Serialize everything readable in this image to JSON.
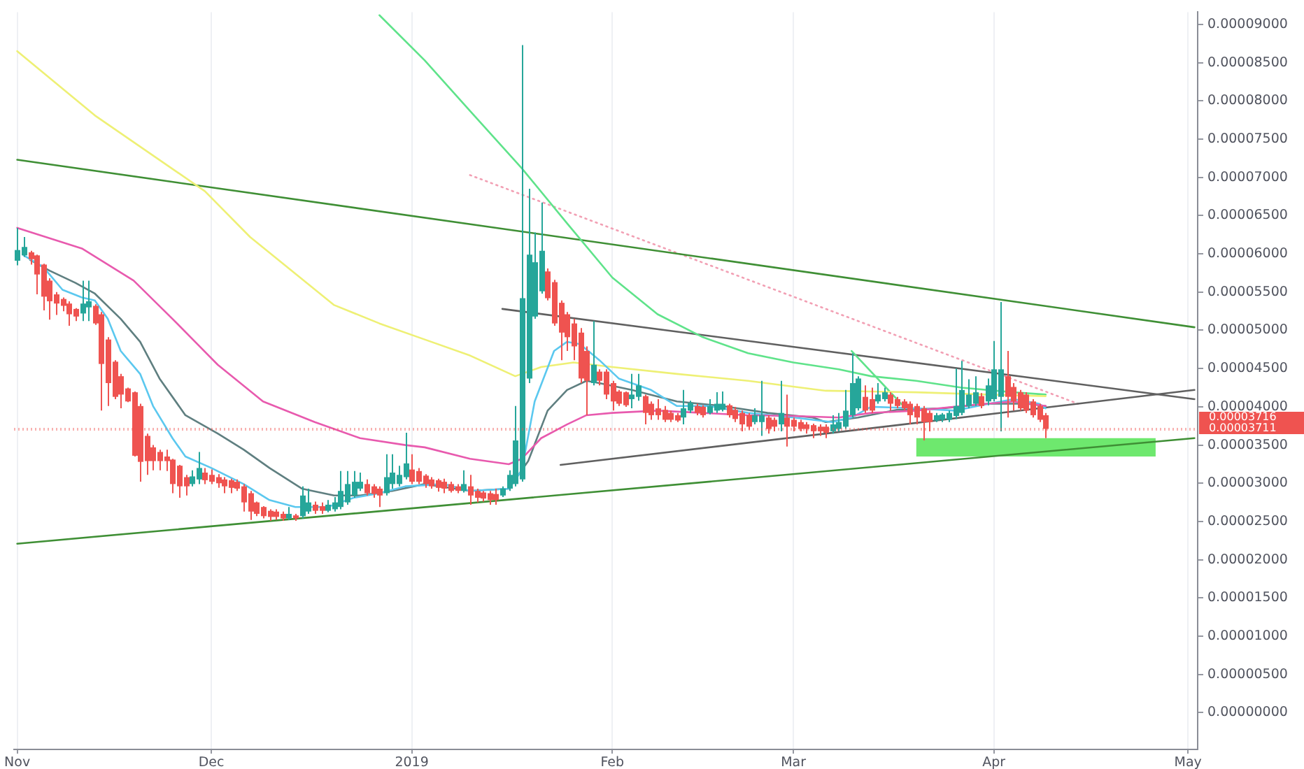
{
  "chart_data": {
    "type": "candlestick",
    "x": [
      "2018-11-01",
      "2018-11-02",
      "2018-11-03",
      "2018-11-04",
      "2018-11-05",
      "2018-11-06",
      "2018-11-07",
      "2018-11-08",
      "2018-11-09",
      "2018-11-10",
      "2018-11-11",
      "2018-11-12",
      "2018-11-13",
      "2018-11-14",
      "2018-11-15",
      "2018-11-16",
      "2018-11-17",
      "2018-11-18",
      "2018-11-19",
      "2018-11-20",
      "2018-11-21",
      "2018-11-22",
      "2018-11-23",
      "2018-11-24",
      "2018-11-25",
      "2018-11-26",
      "2018-11-27",
      "2018-11-28",
      "2018-11-29",
      "2018-11-30",
      "2018-12-01",
      "2018-12-02",
      "2018-12-03",
      "2018-12-04",
      "2018-12-05",
      "2018-12-06",
      "2018-12-07",
      "2018-12-08",
      "2018-12-09",
      "2018-12-10",
      "2018-12-11",
      "2018-12-12",
      "2018-12-13",
      "2018-12-14",
      "2018-12-15",
      "2018-12-16",
      "2018-12-17",
      "2018-12-18",
      "2018-12-19",
      "2018-12-20",
      "2018-12-21",
      "2018-12-22",
      "2018-12-23",
      "2018-12-24",
      "2018-12-25",
      "2018-12-26",
      "2018-12-27",
      "2018-12-28",
      "2018-12-29",
      "2018-12-30",
      "2018-12-31",
      "2019-01-01",
      "2019-01-02",
      "2019-01-03",
      "2019-01-04",
      "2019-01-05",
      "2019-01-06",
      "2019-01-07",
      "2019-01-08",
      "2019-01-09",
      "2019-01-10",
      "2019-01-11",
      "2019-01-12",
      "2019-01-13",
      "2019-01-14",
      "2019-01-15",
      "2019-01-16",
      "2019-01-17",
      "2019-01-18",
      "2019-01-19",
      "2019-01-20",
      "2019-01-21",
      "2019-01-22",
      "2019-01-23",
      "2019-01-24",
      "2019-01-25",
      "2019-01-26",
      "2019-01-27",
      "2019-01-28",
      "2019-01-29",
      "2019-01-30",
      "2019-01-31",
      "2019-02-01",
      "2019-02-02",
      "2019-02-03",
      "2019-02-04",
      "2019-02-05",
      "2019-02-06",
      "2019-02-07",
      "2019-02-08",
      "2019-02-09",
      "2019-02-10",
      "2019-02-11",
      "2019-02-12",
      "2019-02-13",
      "2019-02-14",
      "2019-02-15",
      "2019-02-16",
      "2019-02-17",
      "2019-02-18",
      "2019-02-19",
      "2019-02-20",
      "2019-02-21",
      "2019-02-22",
      "2019-02-23",
      "2019-02-24",
      "2019-02-25",
      "2019-02-26",
      "2019-02-27",
      "2019-02-28",
      "2019-03-01",
      "2019-03-02",
      "2019-03-03",
      "2019-03-04",
      "2019-03-05",
      "2019-03-06",
      "2019-03-07",
      "2019-03-08",
      "2019-03-09",
      "2019-03-10",
      "2019-03-11",
      "2019-03-12",
      "2019-03-13",
      "2019-03-14",
      "2019-03-15",
      "2019-03-16",
      "2019-03-17",
      "2019-03-18",
      "2019-03-19",
      "2019-03-20",
      "2019-03-21",
      "2019-03-22",
      "2019-03-23",
      "2019-03-24",
      "2019-03-25",
      "2019-03-26",
      "2019-03-27",
      "2019-03-28",
      "2019-03-29",
      "2019-03-30",
      "2019-03-31",
      "2019-04-01",
      "2019-04-02",
      "2019-04-03",
      "2019-04-04",
      "2019-04-05",
      "2019-04-06",
      "2019-04-07",
      "2019-04-08",
      "2019-04-09"
    ],
    "ohlc": [
      [
        5.91e-05,
        6.34e-05,
        5.85e-05,
        6.05e-05
      ],
      [
        5.98e-05,
        6.22e-05,
        5.96e-05,
        6.09e-05
      ],
      [
        6.02e-05,
        6.04e-05,
        5.86e-05,
        5.93e-05
      ],
      [
        5.98e-05,
        5.99e-05,
        5.47e-05,
        5.73e-05
      ],
      [
        5.86e-05,
        5.87e-05,
        5.26e-05,
        5.44e-05
      ],
      [
        5.65e-05,
        5.68e-05,
        5.14e-05,
        5.38e-05
      ],
      [
        5.47e-05,
        5.5e-05,
        5.2e-05,
        5.35e-05
      ],
      [
        5.41e-05,
        5.43e-05,
        5.25e-05,
        5.32e-05
      ],
      [
        5.35e-05,
        5.38e-05,
        5.06e-05,
        5.21e-05
      ],
      [
        5.28e-05,
        5.29e-05,
        5.12e-05,
        5.18e-05
      ],
      [
        5.22e-05,
        5.65e-05,
        5.12e-05,
        5.35e-05
      ],
      [
        5.3e-05,
        5.65e-05,
        5.12e-05,
        5.38e-05
      ],
      [
        5.32e-05,
        5.34e-05,
        5.07e-05,
        5.09e-05
      ],
      [
        5.21e-05,
        5.24e-05,
        3.95e-05,
        4.56e-05
      ],
      [
        4.88e-05,
        4.91e-05,
        4.01e-05,
        4.31e-05
      ],
      [
        4.59e-05,
        4.61e-05,
        4.1e-05,
        4.13e-05
      ],
      [
        4.4e-05,
        4.43e-05,
        3.98e-05,
        4.16e-05
      ],
      [
        4.24e-05,
        4.25e-05,
        4.06e-05,
        4.07e-05
      ],
      [
        4.19e-05,
        4.2e-05,
        3.35e-05,
        3.36e-05
      ],
      [
        4.01e-05,
        4.04e-05,
        3.02e-05,
        3.28e-05
      ],
      [
        3.62e-05,
        3.65e-05,
        3.11e-05,
        3.29e-05
      ],
      [
        3.47e-05,
        3.5e-05,
        3.17e-05,
        3.29e-05
      ],
      [
        3.41e-05,
        3.44e-05,
        3.17e-05,
        3.29e-05
      ],
      [
        3.35e-05,
        3.44e-05,
        3.16e-05,
        3.29e-05
      ],
      [
        3.31e-05,
        3.32e-05,
        2.87e-05,
        2.99e-05
      ],
      [
        3.23e-05,
        3.24e-05,
        2.81e-05,
        2.96e-05
      ],
      [
        3.08e-05,
        3.11e-05,
        2.84e-05,
        2.96e-05
      ],
      [
        2.99e-05,
        3.17e-05,
        2.96e-05,
        3.09e-05
      ],
      [
        3.05e-05,
        3.41e-05,
        2.99e-05,
        3.2e-05
      ],
      [
        3.14e-05,
        3.2e-05,
        2.99e-05,
        3.04e-05
      ],
      [
        3.11e-05,
        3.18e-05,
        2.99e-05,
        3.02e-05
      ],
      [
        3.08e-05,
        3.12e-05,
        2.94e-05,
        3e-05
      ],
      [
        3.05e-05,
        3.08e-05,
        2.87e-05,
        2.96e-05
      ],
      [
        3.04e-05,
        3.06e-05,
        2.87e-05,
        2.94e-05
      ],
      [
        3.02e-05,
        3.05e-05,
        2.9e-05,
        2.93e-05
      ],
      [
        2.96e-05,
        2.99e-05,
        2.63e-05,
        2.75e-05
      ],
      [
        2.87e-05,
        2.9e-05,
        2.52e-05,
        2.63e-05
      ],
      [
        2.75e-05,
        2.76e-05,
        2.57e-05,
        2.6e-05
      ],
      [
        2.69e-05,
        2.7e-05,
        2.54e-05,
        2.57e-05
      ],
      [
        2.64e-05,
        2.66e-05,
        2.51e-05,
        2.56e-05
      ],
      [
        2.63e-05,
        2.66e-05,
        2.52e-05,
        2.56e-05
      ],
      [
        2.6e-05,
        2.63e-05,
        2.51e-05,
        2.54e-05
      ],
      [
        2.54e-05,
        2.69e-05,
        2.52e-05,
        2.6e-05
      ],
      [
        2.58e-05,
        2.6e-05,
        2.51e-05,
        2.54e-05
      ],
      [
        2.57e-05,
        2.96e-05,
        2.54e-05,
        2.84e-05
      ],
      [
        2.63e-05,
        2.93e-05,
        2.6e-05,
        2.75e-05
      ],
      [
        2.72e-05,
        2.76e-05,
        2.6e-05,
        2.64e-05
      ],
      [
        2.7e-05,
        2.75e-05,
        2.6e-05,
        2.64e-05
      ],
      [
        2.64e-05,
        2.78e-05,
        2.62e-05,
        2.72e-05
      ],
      [
        2.66e-05,
        2.82e-05,
        2.63e-05,
        2.75e-05
      ],
      [
        2.69e-05,
        3.16e-05,
        2.66e-05,
        2.9e-05
      ],
      [
        2.75e-05,
        3.16e-05,
        2.72e-05,
        2.99e-05
      ],
      [
        2.84e-05,
        3.16e-05,
        2.81e-05,
        3.02e-05
      ],
      [
        2.93e-05,
        3.14e-05,
        2.9e-05,
        3.02e-05
      ],
      [
        2.99e-05,
        3.05e-05,
        2.84e-05,
        2.87e-05
      ],
      [
        2.96e-05,
        2.99e-05,
        2.81e-05,
        2.86e-05
      ],
      [
        2.93e-05,
        2.96e-05,
        2.69e-05,
        2.84e-05
      ],
      [
        2.87e-05,
        3.38e-05,
        2.84e-05,
        3.08e-05
      ],
      [
        2.99e-05,
        3.38e-05,
        2.93e-05,
        3.14e-05
      ],
      [
        2.99e-05,
        3.23e-05,
        2.96e-05,
        3.11e-05
      ],
      [
        3.08e-05,
        3.66e-05,
        3.05e-05,
        3.26e-05
      ],
      [
        3.18e-05,
        3.38e-05,
        2.99e-05,
        3.02e-05
      ],
      [
        3.16e-05,
        3.2e-05,
        2.99e-05,
        3.02e-05
      ],
      [
        3.1e-05,
        3.12e-05,
        2.94e-05,
        2.99e-05
      ],
      [
        3.05e-05,
        3.08e-05,
        2.93e-05,
        2.96e-05
      ],
      [
        3.04e-05,
        3.06e-05,
        2.89e-05,
        2.94e-05
      ],
      [
        3.02e-05,
        3.06e-05,
        2.87e-05,
        2.93e-05
      ],
      [
        2.99e-05,
        3.02e-05,
        2.88e-05,
        2.9e-05
      ],
      [
        2.96e-05,
        2.99e-05,
        2.87e-05,
        2.9e-05
      ],
      [
        2.9e-05,
        3.17e-05,
        2.88e-05,
        2.99e-05
      ],
      [
        2.96e-05,
        3.11e-05,
        2.72e-05,
        2.84e-05
      ],
      [
        2.9e-05,
        2.93e-05,
        2.75e-05,
        2.81e-05
      ],
      [
        2.88e-05,
        2.9e-05,
        2.76e-05,
        2.8e-05
      ],
      [
        2.87e-05,
        2.9e-05,
        2.72e-05,
        2.78e-05
      ],
      [
        2.86e-05,
        2.93e-05,
        2.72e-05,
        2.78e-05
      ],
      [
        2.84e-05,
        2.96e-05,
        2.82e-05,
        2.93e-05
      ],
      [
        2.93e-05,
        3.17e-05,
        2.9e-05,
        3.11e-05
      ],
      [
        2.99e-05,
        4.01e-05,
        2.96e-05,
        3.56e-05
      ],
      [
        3.05e-05,
        8.73e-05,
        3.02e-05,
        5.42e-05
      ],
      [
        4.37e-05,
        6.85e-05,
        4.31e-05,
        5.99e-05
      ],
      [
        5.18e-05,
        6.28e-05,
        5.15e-05,
        5.89e-05
      ],
      [
        5.51e-05,
        6.67e-05,
        5.48e-05,
        6.04e-05
      ],
      [
        5.77e-05,
        5.81e-05,
        5.39e-05,
        5.42e-05
      ],
      [
        5.63e-05,
        5.66e-05,
        5.06e-05,
        5.09e-05
      ],
      [
        5.36e-05,
        5.39e-05,
        4.61e-05,
        4.97e-05
      ],
      [
        5.21e-05,
        5.24e-05,
        4.73e-05,
        4.91e-05
      ],
      [
        5.09e-05,
        5.15e-05,
        4.61e-05,
        4.79e-05
      ],
      [
        4.97e-05,
        5.03e-05,
        4.31e-05,
        4.37e-05
      ],
      [
        4.73e-05,
        4.79e-05,
        3.89e-05,
        4.34e-05
      ],
      [
        4.31e-05,
        5.12e-05,
        4.28e-05,
        4.55e-05
      ],
      [
        4.46e-05,
        4.49e-05,
        4.28e-05,
        4.34e-05
      ],
      [
        4.46e-05,
        4.49e-05,
        4.1e-05,
        4.16e-05
      ],
      [
        4.31e-05,
        4.34e-05,
        3.95e-05,
        4.07e-05
      ],
      [
        4.2e-05,
        4.22e-05,
        4.01e-05,
        4.04e-05
      ],
      [
        4.19e-05,
        4.2e-05,
        4e-05,
        4.02e-05
      ],
      [
        4.1e-05,
        4.43e-05,
        3.98e-05,
        4.16e-05
      ],
      [
        4.13e-05,
        4.43e-05,
        4.08e-05,
        4.28e-05
      ],
      [
        4.14e-05,
        4.16e-05,
        3.77e-05,
        3.92e-05
      ],
      [
        4.04e-05,
        4.07e-05,
        3.83e-05,
        3.89e-05
      ],
      [
        3.98e-05,
        4.1e-05,
        3.83e-05,
        3.89e-05
      ],
      [
        3.96e-05,
        4.01e-05,
        3.8e-05,
        3.83e-05
      ],
      [
        3.92e-05,
        3.95e-05,
        3.8e-05,
        3.83e-05
      ],
      [
        3.89e-05,
        3.92e-05,
        3.8e-05,
        3.82e-05
      ],
      [
        3.86e-05,
        4.22e-05,
        3.77e-05,
        3.98e-05
      ],
      [
        3.95e-05,
        4.08e-05,
        3.92e-05,
        4.05e-05
      ],
      [
        4.01e-05,
        4.04e-05,
        3.89e-05,
        3.92e-05
      ],
      [
        4e-05,
        4.02e-05,
        3.86e-05,
        3.89e-05
      ],
      [
        3.92e-05,
        4.1e-05,
        3.9e-05,
        4.01e-05
      ],
      [
        3.95e-05,
        4.19e-05,
        3.92e-05,
        4.04e-05
      ],
      [
        3.96e-05,
        4.2e-05,
        3.94e-05,
        4.04e-05
      ],
      [
        4.02e-05,
        4.04e-05,
        3.86e-05,
        3.89e-05
      ],
      [
        3.96e-05,
        4e-05,
        3.8e-05,
        3.84e-05
      ],
      [
        3.92e-05,
        3.95e-05,
        3.68e-05,
        3.77e-05
      ],
      [
        3.89e-05,
        3.92e-05,
        3.7e-05,
        3.74e-05
      ],
      [
        3.8e-05,
        3.98e-05,
        3.77e-05,
        3.89e-05
      ],
      [
        3.8e-05,
        4.34e-05,
        3.62e-05,
        3.89e-05
      ],
      [
        3.86e-05,
        3.89e-05,
        3.65e-05,
        3.71e-05
      ],
      [
        3.83e-05,
        3.86e-05,
        3.68e-05,
        3.74e-05
      ],
      [
        3.77e-05,
        4.34e-05,
        3.68e-05,
        3.92e-05
      ],
      [
        3.86e-05,
        4.16e-05,
        3.48e-05,
        3.74e-05
      ],
      [
        3.83e-05,
        3.86e-05,
        3.68e-05,
        3.74e-05
      ],
      [
        3.8e-05,
        3.83e-05,
        3.68e-05,
        3.71e-05
      ],
      [
        3.77e-05,
        3.8e-05,
        3.65e-05,
        3.71e-05
      ],
      [
        3.76e-05,
        3.78e-05,
        3.59e-05,
        3.68e-05
      ],
      [
        3.74e-05,
        3.77e-05,
        3.62e-05,
        3.68e-05
      ],
      [
        3.74e-05,
        3.77e-05,
        3.59e-05,
        3.66e-05
      ],
      [
        3.68e-05,
        3.89e-05,
        3.65e-05,
        3.77e-05
      ],
      [
        3.71e-05,
        3.92e-05,
        3.68e-05,
        3.8e-05
      ],
      [
        3.74e-05,
        4.22e-05,
        3.71e-05,
        3.95e-05
      ],
      [
        3.89e-05,
        4.7e-05,
        3.86e-05,
        4.31e-05
      ],
      [
        3.98e-05,
        4.4e-05,
        3.95e-05,
        4.37e-05
      ],
      [
        4.13e-05,
        4.28e-05,
        3.92e-05,
        3.95e-05
      ],
      [
        4.1e-05,
        4.25e-05,
        3.92e-05,
        3.95e-05
      ],
      [
        4.07e-05,
        4.31e-05,
        4.04e-05,
        4.16e-05
      ],
      [
        4.1e-05,
        4.25e-05,
        4.07e-05,
        4.19e-05
      ],
      [
        4.16e-05,
        4.19e-05,
        3.95e-05,
        4.04e-05
      ],
      [
        4.1e-05,
        4.13e-05,
        3.98e-05,
        4.01e-05
      ],
      [
        4.07e-05,
        4.1e-05,
        3.95e-05,
        3.98e-05
      ],
      [
        4.04e-05,
        4.07e-05,
        3.77e-05,
        3.89e-05
      ],
      [
        4.01e-05,
        4.04e-05,
        3.77e-05,
        3.86e-05
      ],
      [
        3.98e-05,
        4.01e-05,
        3.56e-05,
        3.8e-05
      ],
      [
        3.92e-05,
        3.95e-05,
        3.68e-05,
        3.8e-05
      ],
      [
        3.82e-05,
        3.92e-05,
        3.8e-05,
        3.89e-05
      ],
      [
        3.83e-05,
        3.92e-05,
        3.8e-05,
        3.9e-05
      ],
      [
        3.83e-05,
        3.95e-05,
        3.8e-05,
        3.92e-05
      ],
      [
        3.88e-05,
        4.5e-05,
        3.84e-05,
        4.01e-05
      ],
      [
        3.92e-05,
        4.6e-05,
        3.89e-05,
        4.22e-05
      ],
      [
        4.01e-05,
        4.36e-05,
        3.98e-05,
        4.16e-05
      ],
      [
        4.04e-05,
        4.4e-05,
        4.01e-05,
        4.19e-05
      ],
      [
        4.14e-05,
        4.18e-05,
        3.98e-05,
        4.01e-05
      ],
      [
        4.07e-05,
        4.37e-05,
        4.02e-05,
        4.28e-05
      ],
      [
        4.1e-05,
        4.86e-05,
        4.07e-05,
        4.49e-05
      ],
      [
        4.13e-05,
        5.37e-05,
        3.68e-05,
        4.49e-05
      ],
      [
        4.4e-05,
        4.73e-05,
        3.86e-05,
        4.13e-05
      ],
      [
        4.26e-05,
        4.31e-05,
        3.95e-05,
        4.07e-05
      ],
      [
        4.19e-05,
        4.22e-05,
        3.95e-05,
        3.98e-05
      ],
      [
        4.16e-05,
        4.19e-05,
        3.92e-05,
        3.95e-05
      ],
      [
        4.07e-05,
        4.1e-05,
        3.86e-05,
        3.89e-05
      ],
      [
        4.01e-05,
        4.04e-05,
        3.8e-05,
        3.83e-05
      ],
      [
        3.89e-05,
        3.92e-05,
        3.59e-05,
        3.711e-05
      ]
    ],
    "colors": [
      "#26a69a",
      "#26a69a",
      "#ef5350",
      "#ef5350",
      "#ef5350",
      "#ef5350",
      "#ef5350",
      "#ef5350",
      "#ef5350",
      "#ef5350",
      "#26a69a",
      "#26a69a",
      "#ef5350",
      "#ef5350",
      "#ef5350",
      "#ef5350",
      "#ef5350",
      "#ef5350",
      "#ef5350",
      "#ef5350",
      "#ef5350",
      "#ef5350",
      "#ef5350",
      "#ef5350",
      "#ef5350",
      "#ef5350",
      "#ef5350",
      "#26a69a",
      "#26a69a",
      "#ef5350",
      "#ef5350",
      "#ef5350",
      "#ef5350",
      "#ef5350",
      "#ef5350",
      "#ef5350",
      "#ef5350",
      "#ef5350",
      "#ef5350",
      "#ef5350",
      "#ef5350",
      "#ef5350",
      "#26a69a",
      "#ef5350",
      "#26a69a",
      "#26a69a",
      "#ef5350",
      "#ef5350",
      "#26a69a",
      "#26a69a",
      "#26a69a",
      "#26a69a",
      "#26a69a",
      "#26a69a",
      "#ef5350",
      "#ef5350",
      "#ef5350",
      "#26a69a",
      "#26a69a",
      "#26a69a",
      "#26a69a",
      "#ef5350",
      "#ef5350",
      "#ef5350",
      "#ef5350",
      "#ef5350",
      "#ef5350",
      "#ef5350",
      "#ef5350",
      "#26a69a",
      "#ef5350",
      "#ef5350",
      "#ef5350",
      "#ef5350",
      "#ef5350",
      "#26a69a",
      "#26a69a",
      "#26a69a",
      "#26a69a",
      "#26a69a",
      "#26a69a",
      "#26a69a",
      "#ef5350",
      "#ef5350",
      "#ef5350",
      "#ef5350",
      "#ef5350",
      "#ef5350",
      "#ef5350",
      "#26a69a",
      "#ef5350",
      "#ef5350",
      "#ef5350",
      "#ef5350",
      "#ef5350",
      "#26a69a",
      "#26a69a",
      "#ef5350",
      "#ef5350",
      "#ef5350",
      "#ef5350",
      "#ef5350",
      "#ef5350",
      "#26a69a",
      "#26a69a",
      "#ef5350",
      "#ef5350",
      "#26a69a",
      "#26a69a",
      "#26a69a",
      "#ef5350",
      "#ef5350",
      "#ef5350",
      "#ef5350",
      "#26a69a",
      "#26a69a",
      "#ef5350",
      "#ef5350",
      "#26a69a",
      "#ef5350",
      "#ef5350",
      "#ef5350",
      "#ef5350",
      "#ef5350",
      "#ef5350",
      "#ef5350",
      "#26a69a",
      "#26a69a",
      "#26a69a",
      "#26a69a",
      "#26a69a",
      "#ef5350",
      "#ef5350",
      "#26a69a",
      "#26a69a",
      "#ef5350",
      "#ef5350",
      "#ef5350",
      "#ef5350",
      "#ef5350",
      "#ef5350",
      "#ef5350",
      "#26a69a",
      "#26a69a",
      "#26a69a",
      "#26a69a",
      "#26a69a",
      "#26a69a",
      "#26a69a",
      "#ef5350",
      "#26a69a",
      "#26a69a",
      "#26a69a",
      "#ef5350",
      "#ef5350",
      "#ef5350",
      "#ef5350",
      "#ef5350",
      "#ef5350",
      "#ef5350"
    ],
    "series": [
      {
        "type": "line",
        "color": "#e85aae",
        "x": [
          "2018-11-01",
          "2018-11-11",
          "2018-11-19",
          "2018-11-25",
          "2018-12-02",
          "2018-12-09",
          "2018-12-17",
          "2018-12-24",
          "2018-12-31",
          "2019-01-03",
          "2019-01-10",
          "2019-01-16",
          "2019-01-18",
          "2019-01-21",
          "2019-01-25",
          "2019-01-28",
          "2019-02-01",
          "2019-02-08",
          "2019-02-15",
          "2019-02-22",
          "2019-03-01",
          "2019-03-08",
          "2019-03-13",
          "2019-03-20",
          "2019-03-27",
          "2019-04-04",
          "2019-04-09"
        ],
        "values": [
          6.34e-05,
          6.07e-05,
          5.65e-05,
          5.15e-05,
          4.55e-05,
          4.07e-05,
          3.8e-05,
          3.59e-05,
          3.5e-05,
          3.47e-05,
          3.32e-05,
          3.25e-05,
          3.32e-05,
          3.59e-05,
          3.77e-05,
          3.89e-05,
          3.92e-05,
          3.95e-05,
          3.92e-05,
          3.89e-05,
          3.88e-05,
          3.86e-05,
          3.92e-05,
          3.95e-05,
          4.01e-05,
          4.07e-05,
          4.01e-05
        ]
      },
      {
        "type": "line",
        "color": "#5bc8ef",
        "x": [
          "2018-11-02",
          "2018-11-05",
          "2018-11-08",
          "2018-11-11",
          "2018-11-13",
          "2018-11-15",
          "2018-11-17",
          "2018-11-20",
          "2018-11-22",
          "2018-11-25",
          "2018-11-27",
          "2018-12-01",
          "2018-12-06",
          "2018-12-10",
          "2018-12-14",
          "2018-12-19",
          "2018-12-23",
          "2018-12-27",
          "2018-12-31",
          "2019-01-06",
          "2019-01-10",
          "2019-01-16",
          "2019-01-18",
          "2019-01-20",
          "2019-01-23",
          "2019-01-25",
          "2019-01-27",
          "2019-01-30",
          "2019-02-02",
          "2019-02-07",
          "2019-02-11",
          "2019-02-16",
          "2019-02-22",
          "2019-03-01",
          "2019-03-07",
          "2019-03-10",
          "2019-03-13",
          "2019-03-20",
          "2019-03-26",
          "2019-03-30",
          "2019-04-04",
          "2019-04-08",
          "2019-04-09"
        ],
        "values": [
          5.98e-05,
          5.83e-05,
          5.53e-05,
          5.43e-05,
          5.39e-05,
          5.15e-05,
          4.73e-05,
          4.43e-05,
          4.01e-05,
          3.59e-05,
          3.35e-05,
          3.2e-05,
          2.99e-05,
          2.78e-05,
          2.69e-05,
          2.69e-05,
          2.81e-05,
          2.87e-05,
          2.96e-05,
          2.99e-05,
          2.9e-05,
          2.93e-05,
          3.17e-05,
          4.07e-05,
          4.73e-05,
          4.85e-05,
          4.82e-05,
          4.61e-05,
          4.37e-05,
          4.22e-05,
          4.01e-05,
          4.01e-05,
          3.92e-05,
          3.86e-05,
          3.8e-05,
          3.86e-05,
          4e-05,
          3.98e-05,
          3.95e-05,
          4.02e-05,
          4.1e-05,
          4.04e-05,
          3.98e-05
        ]
      },
      {
        "type": "line",
        "color": "#5f7f80",
        "x": [
          "2018-11-03",
          "2018-11-06",
          "2018-11-10",
          "2018-11-13",
          "2018-11-17",
          "2018-11-20",
          "2018-11-23",
          "2018-11-27",
          "2018-12-02",
          "2018-12-06",
          "2018-12-10",
          "2018-12-15",
          "2018-12-20",
          "2018-12-24",
          "2018-12-29",
          "2019-01-03",
          "2019-01-10",
          "2019-01-16",
          "2019-01-19",
          "2019-01-22",
          "2019-01-25",
          "2019-01-28",
          "2019-01-30",
          "2019-02-04",
          "2019-02-11",
          "2019-02-18",
          "2019-02-25",
          "2019-03-04",
          "2019-03-06",
          "2019-03-11",
          "2019-03-17",
          "2019-03-24",
          "2019-03-31",
          "2019-04-06",
          "2019-04-09"
        ],
        "values": [
          5.92e-05,
          5.78e-05,
          5.62e-05,
          5.48e-05,
          5.15e-05,
          4.85e-05,
          4.37e-05,
          3.89e-05,
          3.65e-05,
          3.44e-05,
          3.2e-05,
          2.93e-05,
          2.84e-05,
          2.84e-05,
          2.9e-05,
          2.99e-05,
          2.9e-05,
          2.93e-05,
          3.29e-05,
          3.95e-05,
          4.22e-05,
          4.34e-05,
          4.31e-05,
          4.22e-05,
          4.07e-05,
          4.01e-05,
          3.92e-05,
          3.86e-05,
          3.8e-05,
          3.86e-05,
          3.96e-05,
          3.98e-05,
          4.04e-05,
          4.04e-05,
          4.01e-05
        ]
      },
      {
        "type": "line",
        "color": "#eef075",
        "x": [
          "2018-11-01",
          "2018-11-13",
          "2018-11-30",
          "2018-12-07",
          "2018-12-20",
          "2018-12-27",
          "2019-01-03",
          "2019-01-10",
          "2019-01-17",
          "2019-01-21",
          "2019-01-26",
          "2019-02-01",
          "2019-02-11",
          "2019-02-22",
          "2019-03-06",
          "2019-03-20",
          "2019-03-31",
          "2019-04-09"
        ],
        "values": [
          8.65e-05,
          7.81e-05,
          6.82e-05,
          6.22e-05,
          5.33e-05,
          5.09e-05,
          4.88e-05,
          4.67e-05,
          4.4e-05,
          4.52e-05,
          4.58e-05,
          4.52e-05,
          4.43e-05,
          4.34e-05,
          4.21e-05,
          4.19e-05,
          4.16e-05,
          4.14e-05
        ]
      },
      {
        "type": "line",
        "color": "#5fe38a",
        "x": [
          "2018-12-27",
          "2019-01-03",
          "2019-01-10",
          "2019-01-18",
          "2019-01-25",
          "2019-02-01",
          "2019-02-08",
          "2019-02-15",
          "2019-02-22",
          "2019-03-01",
          "2019-03-08",
          "2019-03-13",
          "2019-03-20",
          "2019-03-27",
          "2019-04-04",
          "2019-04-09"
        ],
        "values": [
          9.12e-05,
          8.53e-05,
          7.87e-05,
          7.12e-05,
          6.4e-05,
          5.69e-05,
          5.21e-05,
          4.91e-05,
          4.7e-05,
          4.58e-05,
          4.49e-05,
          4.4e-05,
          4.34e-05,
          4.25e-05,
          4.19e-05,
          4.16e-05
        ]
      },
      {
        "type": "line",
        "color": "#5fe38a",
        "x": [
          "2019-03-10",
          "2019-03-18"
        ],
        "values": [
          4.73e-05,
          4.01e-05
        ]
      },
      {
        "type": "line",
        "color": "#3f8f35",
        "x": [
          "2018-11-01",
          "2019-05-02"
        ],
        "values": [
          7.23e-05,
          5.04e-05
        ]
      },
      {
        "type": "line",
        "color": "#3f8f35",
        "x": [
          "2018-11-01",
          "2019-05-02"
        ],
        "values": [
          2.21e-05,
          3.59e-05
        ]
      },
      {
        "type": "line",
        "color": "#606060",
        "x": [
          "2019-01-15",
          "2019-05-02"
        ],
        "values": [
          5.28e-05,
          4.1e-05
        ]
      },
      {
        "type": "line",
        "color": "#606060",
        "x": [
          "2019-01-24",
          "2019-05-02"
        ],
        "values": [
          3.24e-05,
          4.22e-05
        ]
      },
      {
        "type": "line",
        "color": "#f2a0b4",
        "line_style": "dotted",
        "x": [
          "2019-01-10",
          "2019-04-14"
        ],
        "values": [
          7.03e-05,
          4.04e-05
        ]
      },
      {
        "type": "area",
        "color": "#6ee86e",
        "x": [
          "2019-03-20",
          "2019-04-26"
        ],
        "values": [
          null,
          null
        ],
        "lower": [
          3.35e-05,
          3.35e-05
        ],
        "upper": [
          3.59e-05,
          3.59e-05
        ]
      }
    ],
    "xlim": [
      "2018-10-31T12:00",
      "2019-05-02T12:00"
    ],
    "xticks": [
      {
        "value": "2018-11-01",
        "label": "Nov"
      },
      {
        "value": "2018-12-01",
        "label": "Dec"
      },
      {
        "value": "2019-01-01",
        "label": "2019"
      },
      {
        "value": "2019-02-01",
        "label": "Feb"
      },
      {
        "value": "2019-03-01",
        "label": "Mar"
      },
      {
        "value": "2019-04-01",
        "label": "Apr"
      },
      {
        "value": "2019-05-01",
        "label": "May"
      }
    ],
    "ylim": [
      -4.8e-06,
      9.16e-05
    ],
    "yticks": [
      {
        "value": 0,
        "label": "0.00000000"
      },
      {
        "value": 5e-06,
        "label": "0.00000500"
      },
      {
        "value": 1e-05,
        "label": "0.00001000"
      },
      {
        "value": 1.5e-05,
        "label": "0.00001500"
      },
      {
        "value": 2e-05,
        "label": "0.00002000"
      },
      {
        "value": 2.5e-05,
        "label": "0.00002500"
      },
      {
        "value": 3e-05,
        "label": "0.00003000"
      },
      {
        "value": 3.5e-05,
        "label": "0.00003500"
      },
      {
        "value": 4e-05,
        "label": "0.00004000"
      },
      {
        "value": 4.5e-05,
        "label": "0.00004500"
      },
      {
        "value": 5e-05,
        "label": "0.00005000"
      },
      {
        "value": 5.5e-05,
        "label": "0.00005500"
      },
      {
        "value": 6e-05,
        "label": "0.00006000"
      },
      {
        "value": 6.5e-05,
        "label": "0.00006500"
      },
      {
        "value": 7e-05,
        "label": "0.00007000"
      },
      {
        "value": 7.5e-05,
        "label": "0.00007500"
      },
      {
        "value": 8e-05,
        "label": "0.00008000"
      },
      {
        "value": 8.5e-05,
        "label": "0.00008500"
      },
      {
        "value": 9e-05,
        "label": "0.00009000"
      }
    ],
    "ref_lines": [
      {
        "axis": "y",
        "value": 3.716e-05,
        "label": "0.00003716",
        "color": "#ef5350"
      },
      {
        "axis": "y",
        "value": 3.711e-05,
        "label": "0.00003711",
        "color": "#ef5350"
      }
    ],
    "grid": "x"
  }
}
